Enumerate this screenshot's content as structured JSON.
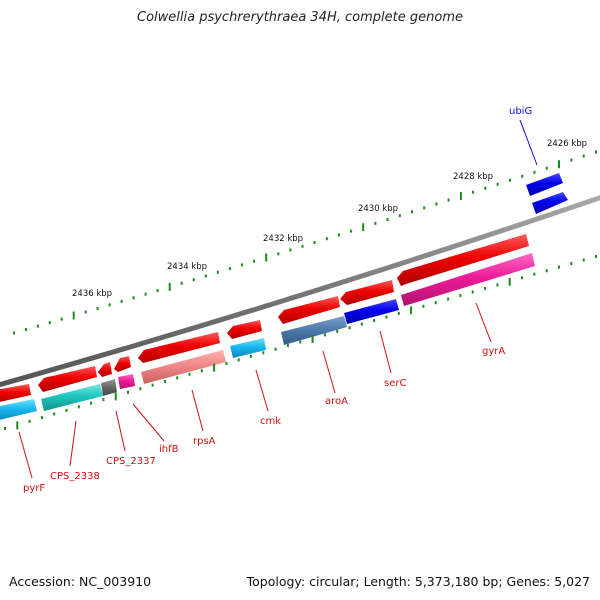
{
  "title": "Colwellia psychrerythraea 34H, complete genome",
  "footer": {
    "accession": "Accession: NC_003910",
    "genome_info": "Topology: circular; Length: 5,373,180 bp; Genes: 5,027"
  },
  "colors": {
    "backbone": "#808080",
    "ruler_tick": "#1a8c1a",
    "label_forward": "#1010cc",
    "label_reverse": "#cc1010",
    "reverse_gene": "#ee1111",
    "forward_gene": "#1515dd"
  },
  "ruler": {
    "labels": [
      "2426 kbp",
      "2428 kbp",
      "2430 kbp",
      "2432 kbp",
      "2434 kbp",
      "2436 kbp"
    ]
  },
  "genes": [
    {
      "name": "ubiG",
      "strand": "forward"
    },
    {
      "name": "gyrA",
      "strand": "reverse"
    },
    {
      "name": "serC",
      "strand": "reverse"
    },
    {
      "name": "aroA",
      "strand": "reverse"
    },
    {
      "name": "cmk",
      "strand": "reverse"
    },
    {
      "name": "rpsA",
      "strand": "reverse"
    },
    {
      "name": "ihfB",
      "strand": "reverse"
    },
    {
      "name": "CPS_2337",
      "strand": "reverse"
    },
    {
      "name": "CPS_2338",
      "strand": "reverse"
    },
    {
      "name": "pyrF",
      "strand": "reverse"
    }
  ]
}
